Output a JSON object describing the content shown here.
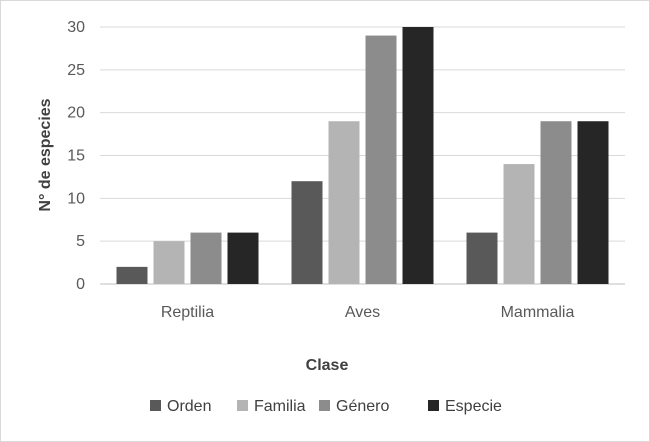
{
  "chart_data": {
    "type": "bar",
    "categories": [
      "Reptilia",
      "Aves",
      "Mammalia"
    ],
    "series": [
      {
        "name": "Orden",
        "values": [
          2,
          12,
          6
        ],
        "color": "#595959"
      },
      {
        "name": "Familia",
        "values": [
          5,
          19,
          14
        ],
        "color": "#b4b4b4"
      },
      {
        "name": "Género",
        "values": [
          6,
          29,
          19
        ],
        "color": "#8c8c8c"
      },
      {
        "name": "Especie",
        "values": [
          6,
          30,
          19
        ],
        "color": "#262626"
      }
    ],
    "xlabel": "Clase",
    "ylabel": "N° de especies",
    "ylim": [
      0,
      30
    ],
    "yticks": [
      0,
      5,
      10,
      15,
      20,
      25,
      30
    ],
    "grid": true,
    "legend_position": "bottom",
    "gridline_color": "#d9d9d9"
  }
}
